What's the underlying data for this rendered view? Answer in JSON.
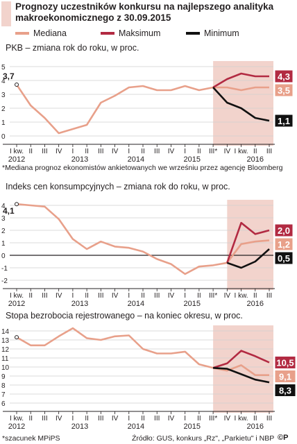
{
  "header": {
    "title": "Prognozy uczestników konkursu na najlepszego analityka makroekonomicznego z 30.09.2015"
  },
  "legend": {
    "items": [
      {
        "label": "Mediana",
        "color": "#e8a08a"
      },
      {
        "label": "Maksimum",
        "color": "#b22a42"
      },
      {
        "label": "Minimum",
        "color": "#111111"
      }
    ]
  },
  "colors": {
    "median": "#e8a08a",
    "max": "#b22a42",
    "min": "#111111",
    "forecast_band": "#f2d3cc",
    "grid": "#cfcfcf",
    "axis": "#231f20"
  },
  "quarter_labels": [
    "I kw.",
    "II",
    "III",
    "IV",
    "I",
    "II",
    "III",
    "IV",
    "I",
    "II",
    "III",
    "IV",
    "I",
    "II",
    "III*",
    "IV",
    "I kw.",
    "II",
    "III"
  ],
  "year_labels": [
    "2012",
    "2013",
    "2014",
    "2015",
    "2016"
  ],
  "footnotes": {
    "pkb_note": "*Mediana prognoz ekonomistów ankietowanych we wrześniu przez agencję Bloomberg",
    "mpips_note": "*szacunek MPiPS",
    "source": "Źródło: GUS, konkurs „Rz\", „Parkietu\" i NBP",
    "logo": "©P"
  },
  "chart_data": [
    {
      "type": "line",
      "title": "PKB – zmiana rok do roku, w proc.",
      "ylim": [
        0,
        5
      ],
      "yticks": [
        0,
        1,
        2,
        3,
        4,
        5
      ],
      "forecast_start_index": 14,
      "start_label": "3,7",
      "end_labels": [
        "4,3",
        "3,5",
        "1,1"
      ],
      "series": [
        {
          "name": "Mediana",
          "values": [
            3.7,
            2.2,
            1.3,
            0.2,
            0.5,
            0.8,
            2.4,
            2.9,
            3.5,
            3.6,
            3.3,
            3.3,
            3.6,
            3.3,
            3.5,
            3.5,
            3.3,
            3.5,
            3.5
          ]
        },
        {
          "name": "Maksimum",
          "values": [
            null,
            null,
            null,
            null,
            null,
            null,
            null,
            null,
            null,
            null,
            null,
            null,
            null,
            null,
            3.5,
            4.1,
            4.5,
            4.3,
            4.3
          ]
        },
        {
          "name": "Minimum",
          "values": [
            null,
            null,
            null,
            null,
            null,
            null,
            null,
            null,
            null,
            null,
            null,
            null,
            null,
            null,
            3.5,
            2.4,
            2.0,
            1.3,
            1.1
          ]
        }
      ]
    },
    {
      "type": "line",
      "title": "Indeks cen konsumpcyjnych – zmiana rok do roku, w proc.",
      "ylim": [
        -2,
        4
      ],
      "yticks": [
        -2,
        -1,
        0,
        1,
        2,
        3,
        4
      ],
      "forecast_start_index": 15,
      "start_label": "4,1",
      "end_labels": [
        "2,0",
        "1,2",
        "0,5"
      ],
      "series": [
        {
          "name": "Mediana",
          "values": [
            4.1,
            4.0,
            3.9,
            2.9,
            1.3,
            0.5,
            1.1,
            0.7,
            0.6,
            0.3,
            -0.3,
            -0.7,
            -1.5,
            -0.9,
            -0.8,
            -0.6,
            0.9,
            1.1,
            1.2
          ]
        },
        {
          "name": "Maksimum",
          "values": [
            null,
            null,
            null,
            null,
            null,
            null,
            null,
            null,
            null,
            null,
            null,
            null,
            null,
            null,
            null,
            -0.6,
            2.6,
            1.7,
            2.0
          ]
        },
        {
          "name": "Minimum",
          "values": [
            null,
            null,
            null,
            null,
            null,
            null,
            null,
            null,
            null,
            null,
            null,
            null,
            null,
            null,
            null,
            -0.6,
            -1.0,
            -0.5,
            0.5
          ]
        }
      ]
    },
    {
      "type": "line",
      "title": "Stopa bezrobocia rejestrowanego – na koniec okresu, w proc.",
      "ylim": [
        6,
        14
      ],
      "yticks": [
        6,
        7,
        8,
        9,
        10,
        11,
        12,
        13,
        14
      ],
      "forecast_start_index": 14,
      "start_label": "",
      "end_labels": [
        "10,5",
        "9,1",
        "8,3"
      ],
      "series": [
        {
          "name": "Mediana",
          "values": [
            13.3,
            12.4,
            12.4,
            13.4,
            14.3,
            13.2,
            13.0,
            13.4,
            13.5,
            12.0,
            11.5,
            11.5,
            11.7,
            10.3,
            9.9,
            9.6,
            10.2,
            9.1,
            9.1
          ]
        },
        {
          "name": "Maksimum",
          "values": [
            null,
            null,
            null,
            null,
            null,
            null,
            null,
            null,
            null,
            null,
            null,
            null,
            null,
            null,
            9.9,
            10.4,
            11.8,
            11.2,
            10.5
          ]
        },
        {
          "name": "Minimum",
          "values": [
            null,
            null,
            null,
            null,
            null,
            null,
            null,
            null,
            null,
            null,
            null,
            null,
            null,
            null,
            9.9,
            9.8,
            9.2,
            8.6,
            8.3
          ]
        }
      ]
    }
  ]
}
